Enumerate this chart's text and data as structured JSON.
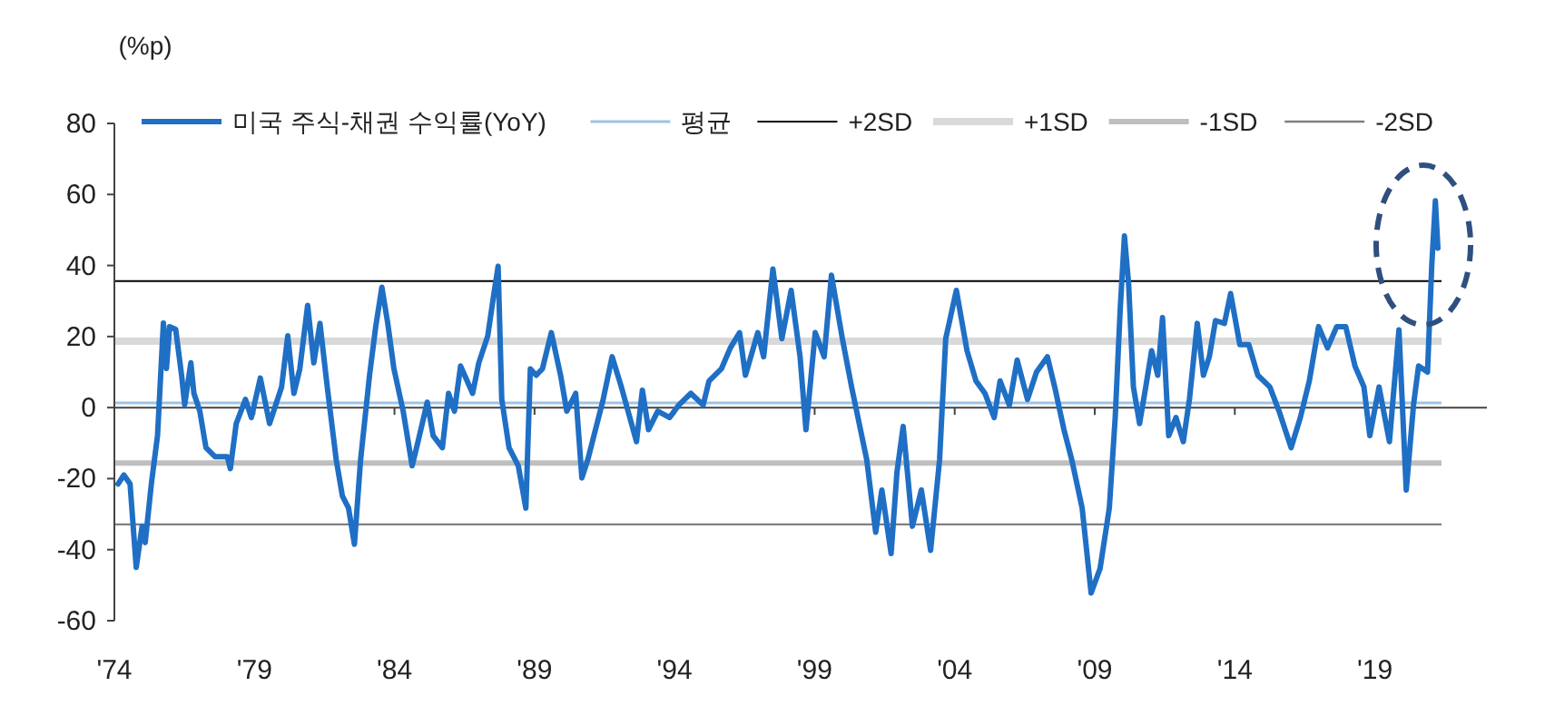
{
  "chart_data": {
    "type": "line",
    "ylabel": "(%p)",
    "x": [
      1974.13,
      1974.34,
      1974.56,
      1974.78,
      1974.99,
      1975.1,
      1975.32,
      1975.54,
      1975.75,
      1975.86,
      1975.97,
      1976.19,
      1976.4,
      1976.51,
      1976.73,
      1976.84,
      1977.05,
      1977.27,
      1977.59,
      1978.03,
      1978.14,
      1978.35,
      1978.68,
      1978.89,
      1979.21,
      1979.54,
      1979.97,
      1980.19,
      1980.41,
      1980.62,
      1980.9,
      1981.12,
      1981.34,
      1981.6,
      1981.92,
      1982.14,
      1982.36,
      1982.57,
      1982.79,
      1983.11,
      1983.33,
      1983.55,
      1983.76,
      1983.98,
      1984.31,
      1984.63,
      1984.84,
      1985.17,
      1985.38,
      1985.71,
      1985.93,
      1986.14,
      1986.36,
      1986.79,
      1987.01,
      1987.33,
      1987.55,
      1987.7,
      1987.83,
      1988.09,
      1988.42,
      1988.69,
      1988.85,
      1989.06,
      1989.28,
      1989.6,
      1989.93,
      1990.15,
      1990.47,
      1990.69,
      1990.9,
      1991.45,
      1991.77,
      1992.1,
      1992.64,
      1992.85,
      1993.07,
      1993.4,
      1993.82,
      1994.15,
      1994.58,
      1995.02,
      1995.23,
      1995.67,
      1995.99,
      1996.32,
      1996.53,
      1996.97,
      1997.18,
      1997.51,
      1997.83,
      1998.16,
      1998.48,
      1998.69,
      1999.02,
      1999.34,
      1999.6,
      1999.99,
      2000.32,
      2000.86,
      2001.18,
      2001.4,
      2001.73,
      2001.94,
      2002.16,
      2002.49,
      2002.81,
      2003.14,
      2003.46,
      2003.68,
      2004.06,
      2004.44,
      2004.76,
      2005.08,
      2005.41,
      2005.62,
      2005.95,
      2006.23,
      2006.6,
      2006.92,
      2007.31,
      2007.57,
      2007.9,
      2008.18,
      2008.55,
      2008.87,
      2009.19,
      2009.52,
      2009.73,
      2009.91,
      2010.06,
      2010.21,
      2010.38,
      2010.6,
      2010.82,
      2011.03,
      2011.25,
      2011.42,
      2011.64,
      2011.9,
      2012.16,
      2012.38,
      2012.66,
      2012.88,
      2013.09,
      2013.31,
      2013.63,
      2013.85,
      2014.18,
      2014.5,
      2014.82,
      2015.25,
      2015.58,
      2016.01,
      2016.34,
      2016.66,
      2016.99,
      2017.31,
      2017.64,
      2017.96,
      2018.29,
      2018.61,
      2018.82,
      2019.15,
      2019.52,
      2019.86,
      2020.12,
      2020.38,
      2020.56,
      2020.88,
      2021.03,
      2021.16,
      2021.25
    ],
    "series": [
      {
        "name": "미국 주식-채권 수익률(YoY)",
        "color": "#1f6fc5",
        "values": [
          -21.5,
          -19,
          -21.5,
          -45,
          -33.4,
          -38,
          -21.5,
          -7.9,
          23.8,
          11,
          22.8,
          22,
          9.1,
          0.8,
          12.6,
          4,
          -1,
          -11.3,
          -13.8,
          -13.8,
          -17.2,
          -4.5,
          2.3,
          -2.8,
          8.3,
          -4.5,
          5.8,
          20.2,
          4,
          10.9,
          28.8,
          12.6,
          23.7,
          5.8,
          -14.7,
          -24.9,
          -28.3,
          -38.5,
          -14.7,
          9.1,
          22.8,
          33.9,
          23.7,
          10.9,
          -1,
          -16.4,
          -9.6,
          1.5,
          -7.9,
          -11.3,
          4,
          -1,
          11.7,
          4,
          12.6,
          20.2,
          32.1,
          39.8,
          2.3,
          -11.3,
          -16.4,
          -28.3,
          10.9,
          9.1,
          10.9,
          21.1,
          9.1,
          -1,
          4,
          -19.8,
          -14.7,
          2.3,
          14.3,
          5.8,
          -9.6,
          4.9,
          -6.2,
          -1,
          -2.8,
          0.7,
          4,
          0.7,
          7.5,
          10.9,
          16.8,
          21.1,
          9.1,
          21.1,
          14.3,
          39,
          19.4,
          33,
          14.3,
          -6.2,
          21.1,
          14.3,
          37.3,
          19.4,
          5.8,
          -14.7,
          -35.1,
          -23.2,
          -41.1,
          -18.1,
          -5.3,
          -33.4,
          -23.2,
          -40.2,
          -14.7,
          19.4,
          33,
          16,
          7.5,
          4,
          -2.8,
          7.5,
          0.7,
          13.4,
          2.3,
          10,
          14.3,
          5.8,
          -6.2,
          -14.7,
          -28.3,
          -52.2,
          -45.3,
          -28.3,
          -2.8,
          27.9,
          48.3,
          34.7,
          5.8,
          -4.5,
          5.8,
          16,
          9.1,
          25.3,
          -7.9,
          -2.8,
          -9.6,
          2.3,
          23.7,
          9.1,
          14.3,
          24.5,
          23.7,
          32.1,
          17.7,
          17.7,
          9.1,
          5.8,
          -1,
          -11.3,
          -2.8,
          7.5,
          22.8,
          16.8,
          22.8,
          22.8,
          11.7,
          5.8,
          -7.9,
          5.8,
          -9.6,
          21.9,
          -23.2,
          0.7,
          11.7,
          10,
          39.8,
          58.2,
          44.9
        ]
      }
    ],
    "ref_lines": [
      {
        "axis": "y",
        "value": 1.3,
        "label": "평균",
        "color": "#9dc3e6"
      },
      {
        "axis": "y",
        "value": 35.6,
        "label": "+2SD",
        "color": "#000000"
      },
      {
        "axis": "y",
        "value": 18.7,
        "label": "+1SD",
        "color": "#d9d9d9"
      },
      {
        "axis": "y",
        "value": -15.6,
        "label": "-1SD",
        "color": "#bfbfbf"
      },
      {
        "axis": "y",
        "value": -32.9,
        "label": "-2SD",
        "color": "#808080"
      }
    ],
    "xlim": [
      1974,
      2023
    ],
    "xticks": [
      {
        "value": 1974,
        "label": "'74"
      },
      {
        "value": 1979,
        "label": "'79"
      },
      {
        "value": 1984,
        "label": "'84"
      },
      {
        "value": 1989,
        "label": "'89"
      },
      {
        "value": 1994,
        "label": "'94"
      },
      {
        "value": 1999,
        "label": "'99"
      },
      {
        "value": 2004,
        "label": "'04"
      },
      {
        "value": 2009,
        "label": "'09"
      },
      {
        "value": 2014,
        "label": "'14"
      },
      {
        "value": 2019,
        "label": "'19"
      }
    ],
    "ylim": [
      -60,
      80
    ],
    "yticks": [
      -60,
      -40,
      -20,
      0,
      20,
      40,
      60,
      80
    ],
    "legend": "top"
  }
}
